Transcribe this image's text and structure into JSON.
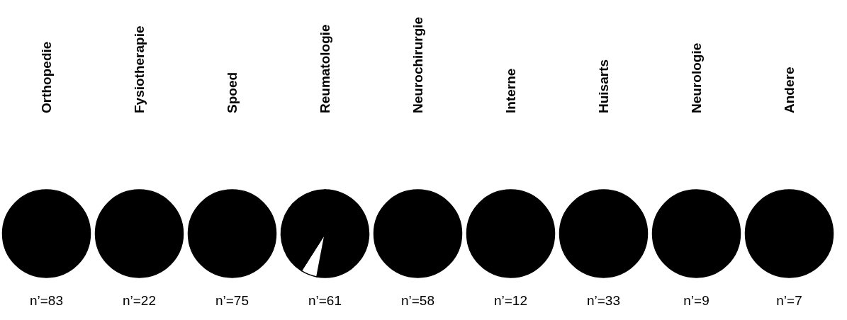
{
  "chart_data": [
    {
      "type": "pie",
      "title": "Orthopedie",
      "categories": [
        null
      ],
      "values": [
        100
      ],
      "colors": [
        "#000000"
      ],
      "annotations": [
        "n’=83"
      ]
    },
    {
      "type": "pie",
      "title": "Fysiotherapie",
      "categories": [
        null
      ],
      "values": [
        100
      ],
      "colors": [
        "#000000"
      ],
      "annotations": [
        "n’=22"
      ]
    },
    {
      "type": "pie",
      "title": "Spoed",
      "categories": [
        null
      ],
      "values": [
        100
      ],
      "colors": [
        "#000000"
      ],
      "annotations": [
        "n’=75"
      ]
    },
    {
      "type": "pie",
      "title": "Reumatologie",
      "categories": [
        null,
        null,
        null
      ],
      "values": [
        53,
        6,
        41
      ],
      "colors": [
        "#000000",
        "#ffffff",
        "#000000"
      ],
      "annotations": [
        "n’=61"
      ]
    },
    {
      "type": "pie",
      "title": "Neurochirurgie",
      "categories": [
        null
      ],
      "values": [
        100
      ],
      "colors": [
        "#000000"
      ],
      "annotations": [
        "n’=58"
      ]
    },
    {
      "type": "pie",
      "title": "Interne",
      "categories": [
        null
      ],
      "values": [
        100
      ],
      "colors": [
        "#000000"
      ],
      "annotations": [
        "n’=12"
      ]
    },
    {
      "type": "pie",
      "title": "Huisarts",
      "categories": [
        null
      ],
      "values": [
        100
      ],
      "colors": [
        "#000000"
      ],
      "annotations": [
        "n’=33"
      ]
    },
    {
      "type": "pie",
      "title": "Neurologie",
      "categories": [
        null
      ],
      "values": [
        100
      ],
      "colors": [
        "#000000"
      ],
      "annotations": [
        "n’=9"
      ]
    },
    {
      "type": "pie",
      "title": "Andere",
      "categories": [
        null
      ],
      "values": [
        100
      ],
      "colors": [
        "#000000"
      ],
      "annotations": [
        "n’=7"
      ]
    }
  ]
}
